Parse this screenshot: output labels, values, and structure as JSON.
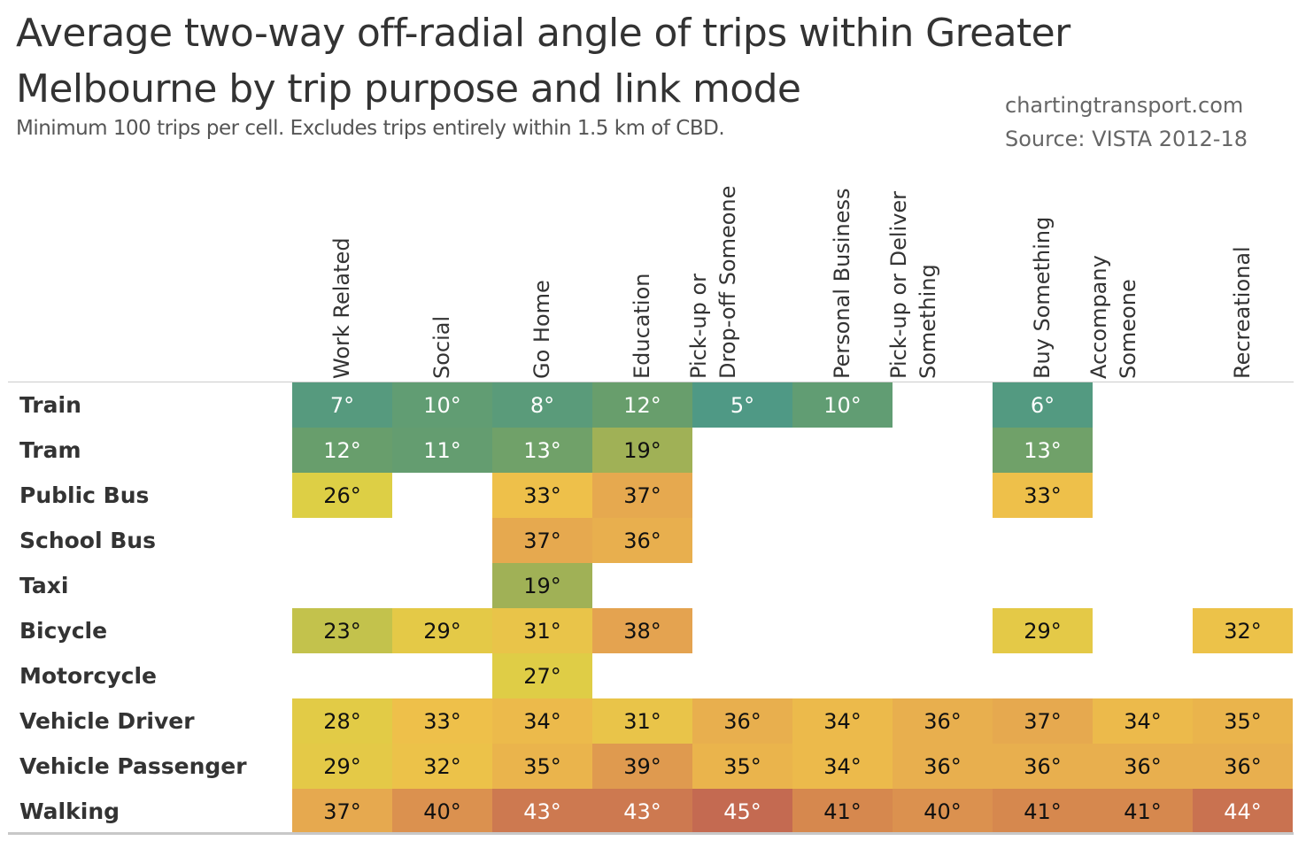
{
  "header": {
    "title": "Average two-way off-radial angle of trips within Greater Melbourne by trip purpose and link mode",
    "subtitle": "Minimum 100 trips per cell. Excludes trips entirely within 1.5 km of CBD.",
    "credit_site": "chartingtransport.com",
    "credit_source": "Source: VISTA 2012-18"
  },
  "chart_data": {
    "type": "heatmap",
    "title": "Average two-way off-radial angle of trips within Greater Melbourne by trip purpose and link mode",
    "subtitle": "Minimum 100 trips per cell. Excludes trips entirely within 1.5 km of CBD.",
    "unit": "°",
    "columns": [
      [
        "Work Related"
      ],
      [
        "Social"
      ],
      [
        "Go Home"
      ],
      [
        "Education"
      ],
      [
        "Pick-up or",
        "Drop-off Someone"
      ],
      [
        "Personal Business"
      ],
      [
        "Pick-up or Deliver",
        "Something"
      ],
      [
        "Buy Something"
      ],
      [
        "Accompany",
        "Someone"
      ],
      [
        "Recreational"
      ]
    ],
    "rows": [
      "Train",
      "Tram",
      "Public Bus",
      "School Bus",
      "Taxi",
      "Bicycle",
      "Motorcycle",
      "Vehicle Driver",
      "Vehicle Passenger",
      "Walking"
    ],
    "values": [
      [
        7,
        10,
        8,
        12,
        5,
        10,
        null,
        6,
        null,
        null
      ],
      [
        12,
        11,
        13,
        19,
        null,
        null,
        null,
        13,
        null,
        null
      ],
      [
        26,
        null,
        33,
        37,
        null,
        null,
        null,
        33,
        null,
        null
      ],
      [
        null,
        null,
        37,
        36,
        null,
        null,
        null,
        null,
        null,
        null
      ],
      [
        null,
        null,
        19,
        null,
        null,
        null,
        null,
        null,
        null,
        null
      ],
      [
        23,
        29,
        31,
        38,
        null,
        null,
        null,
        29,
        null,
        32
      ],
      [
        null,
        null,
        27,
        null,
        null,
        null,
        null,
        null,
        null,
        null
      ],
      [
        28,
        33,
        34,
        31,
        36,
        34,
        36,
        37,
        34,
        35
      ],
      [
        29,
        32,
        35,
        39,
        35,
        34,
        36,
        36,
        36,
        36
      ],
      [
        37,
        40,
        43,
        43,
        45,
        41,
        40,
        41,
        41,
        44
      ]
    ],
    "color_scale": {
      "stops": [
        {
          "value": 5,
          "color": "#4f9985"
        },
        {
          "value": 12,
          "color": "#689e6c"
        },
        {
          "value": 19,
          "color": "#a0b156"
        },
        {
          "value": 26,
          "color": "#ddcf45"
        },
        {
          "value": 33,
          "color": "#eec04a"
        },
        {
          "value": 38,
          "color": "#e4a350"
        },
        {
          "value": 41,
          "color": "#d6884e"
        },
        {
          "value": 45,
          "color": "#c46a51"
        }
      ],
      "light_text_below": 16,
      "light_text_at_or_above": 42
    },
    "legend": "none"
  }
}
